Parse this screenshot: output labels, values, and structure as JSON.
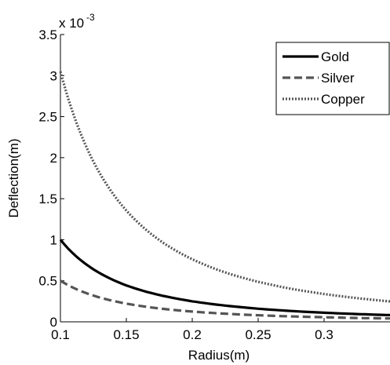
{
  "chart_data": {
    "type": "line",
    "title": "",
    "xlabel": "Radius(m)",
    "ylabel": "Deflection(m)",
    "y_exponent_label": "x 10",
    "y_exponent_power": "-3",
    "xlim": [
      0.1,
      0.35
    ],
    "ylim": [
      0,
      3.5
    ],
    "x_ticks": [
      0.1,
      0.15,
      0.2,
      0.25,
      0.3
    ],
    "x_tick_labels": [
      "0.1",
      "0.15",
      "0.2",
      "0.25",
      "0.3"
    ],
    "y_ticks": [
      0,
      0.5,
      1,
      1.5,
      2,
      2.5,
      3,
      3.5
    ],
    "y_tick_labels": [
      "0",
      "0.5",
      "1",
      "1.5",
      "2",
      "2.5",
      "3",
      "3.5"
    ],
    "grid": false,
    "legend_position": "top-right",
    "x": [
      0.1,
      0.125,
      0.15,
      0.175,
      0.2,
      0.225,
      0.25,
      0.275,
      0.3,
      0.325,
      0.35
    ],
    "series": [
      {
        "name": "Gold",
        "style": "solid",
        "color": "#000000",
        "values": [
          1.0,
          0.64,
          0.444,
          0.327,
          0.25,
          0.198,
          0.16,
          0.132,
          0.111,
          0.095,
          0.082
        ]
      },
      {
        "name": "Silver",
        "style": "dashed",
        "color": "#555555",
        "values": [
          0.5,
          0.32,
          0.222,
          0.163,
          0.125,
          0.099,
          0.08,
          0.066,
          0.056,
          0.047,
          0.041
        ]
      },
      {
        "name": "Copper",
        "style": "dotted",
        "color": "#555555",
        "values": [
          3.05,
          1.952,
          1.356,
          0.996,
          0.763,
          0.602,
          0.488,
          0.403,
          0.339,
          0.289,
          0.249
        ]
      }
    ]
  }
}
